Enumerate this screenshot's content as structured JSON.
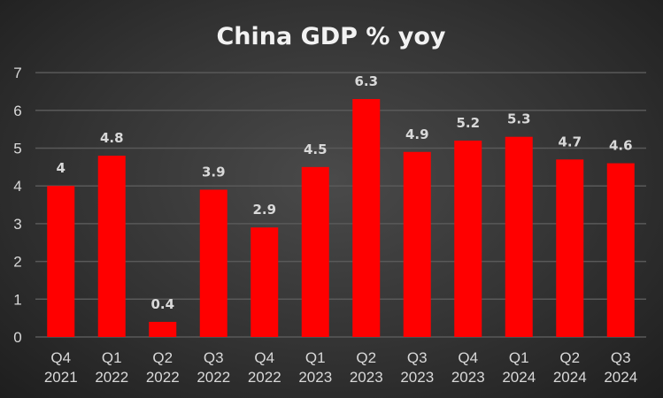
{
  "chart_data": {
    "type": "bar",
    "title": "China GDP % yoy",
    "xlabel": "",
    "ylabel": "",
    "ylim": [
      0,
      7
    ],
    "yticks": [
      0,
      1,
      2,
      3,
      4,
      5,
      6,
      7
    ],
    "grid": true,
    "legend": "none",
    "categories": [
      [
        "Q4",
        "2021"
      ],
      [
        "Q1",
        "2022"
      ],
      [
        "Q2",
        "2022"
      ],
      [
        "Q3",
        "2022"
      ],
      [
        "Q4",
        "2022"
      ],
      [
        "Q1",
        "2023"
      ],
      [
        "Q2",
        "2023"
      ],
      [
        "Q3",
        "2023"
      ],
      [
        "Q4",
        "2023"
      ],
      [
        "Q1",
        "2024"
      ],
      [
        "Q2",
        "2024"
      ],
      [
        "Q3",
        "2024"
      ]
    ],
    "values": [
      4,
      4.8,
      0.4,
      3.9,
      2.9,
      4.5,
      6.3,
      4.9,
      5.2,
      5.3,
      4.7,
      4.6
    ],
    "colors": {
      "bar": "#ff0000",
      "grid": "#595959",
      "text": "#d9d9d9"
    }
  }
}
